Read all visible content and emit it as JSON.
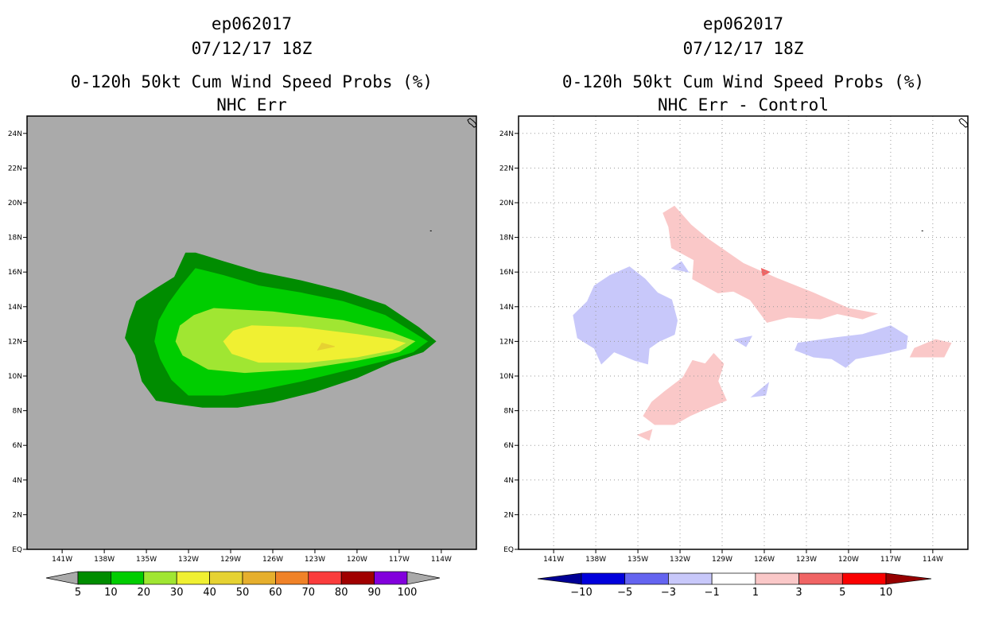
{
  "chart_data": [
    {
      "type": "heatmap",
      "storm_id": "ep062017",
      "datetime": "07/12/17 18Z",
      "title": "0-120h 50kt Cum Wind Speed Probs (%)",
      "subtitle": "NHC Err",
      "x_ticks": [
        "141W",
        "138W",
        "135W",
        "132W",
        "129W",
        "126W",
        "123W",
        "120W",
        "117W",
        "114W"
      ],
      "y_ticks": [
        "EQ",
        "2N",
        "4N",
        "6N",
        "8N",
        "10N",
        "12N",
        "14N",
        "16N",
        "18N",
        "20N",
        "22N",
        "24N"
      ],
      "xlim": [
        -143.5,
        -111.5
      ],
      "ylim": [
        0,
        25
      ],
      "background_color": "#aaaaaa",
      "colorbar": {
        "labels": [
          "5",
          "10",
          "20",
          "30",
          "40",
          "50",
          "60",
          "70",
          "80",
          "90",
          "100"
        ],
        "colors": [
          "#008c00",
          "#00cd00",
          "#a0e632",
          "#f0f032",
          "#e6d232",
          "#e6af2d",
          "#f08228",
          "#fa3c3c",
          "#a00000",
          "#8200dc"
        ],
        "end_color": "#aaaaaa"
      },
      "contours": [
        {
          "level": "5-10",
          "color": "#008c00",
          "points": [
            [
              -132.2,
              17.1
            ],
            [
              -131.5,
              17.1
            ],
            [
              -129.5,
              16.6
            ],
            [
              -127,
              16
            ],
            [
              -124,
              15.5
            ],
            [
              -121,
              14.9
            ],
            [
              -118,
              14.1
            ],
            [
              -115.6,
              12.8
            ],
            [
              -114.4,
              12
            ],
            [
              -115.3,
              11.4
            ],
            [
              -117.5,
              10.8
            ],
            [
              -120,
              9.9
            ],
            [
              -123,
              9.1
            ],
            [
              -126,
              8.5
            ],
            [
              -128.5,
              8.2
            ],
            [
              -131,
              8.2
            ],
            [
              -132.8,
              8.4
            ],
            [
              -134.3,
              8.6
            ],
            [
              -135.3,
              9.7
            ],
            [
              -135.8,
              11.2
            ],
            [
              -136.5,
              12.2
            ],
            [
              -136.2,
              13.2
            ],
            [
              -135.7,
              14.3
            ],
            [
              -134.4,
              15
            ],
            [
              -133,
              15.7
            ],
            [
              -132.2,
              17.1
            ]
          ]
        },
        {
          "level": "10-20",
          "color": "#00cd00",
          "points": [
            [
              -131.5,
              16.2
            ],
            [
              -129.5,
              15.8
            ],
            [
              -127,
              15.2
            ],
            [
              -124,
              14.8
            ],
            [
              -121,
              14.3
            ],
            [
              -118,
              13.5
            ],
            [
              -116.2,
              12.6
            ],
            [
              -115,
              12
            ],
            [
              -116,
              11.4
            ],
            [
              -118,
              10.9
            ],
            [
              -121,
              10.3
            ],
            [
              -124,
              9.7
            ],
            [
              -127,
              9.2
            ],
            [
              -129.5,
              8.9
            ],
            [
              -132,
              8.9
            ],
            [
              -133.2,
              9.8
            ],
            [
              -134,
              11
            ],
            [
              -134.4,
              12
            ],
            [
              -134.1,
              13.2
            ],
            [
              -133.4,
              14.2
            ],
            [
              -132.5,
              15.2
            ],
            [
              -131.5,
              16.2
            ]
          ]
        },
        {
          "level": "20-30",
          "color": "#a0e632",
          "points": [
            [
              -130.2,
              13.9
            ],
            [
              -126,
              13.7
            ],
            [
              -121,
              13.2
            ],
            [
              -117.5,
              12.5
            ],
            [
              -115.9,
              12
            ],
            [
              -117,
              11.4
            ],
            [
              -120,
              10.9
            ],
            [
              -124,
              10.4
            ],
            [
              -128,
              10.2
            ],
            [
              -130.6,
              10.4
            ],
            [
              -132.4,
              11.2
            ],
            [
              -132.9,
              12
            ],
            [
              -132.6,
              12.9
            ],
            [
              -131.6,
              13.5
            ],
            [
              -130.2,
              13.9
            ]
          ]
        },
        {
          "level": "30-40",
          "color": "#f0f032",
          "points": [
            [
              -127.5,
              12.9
            ],
            [
              -124,
              12.8
            ],
            [
              -120,
              12.4
            ],
            [
              -117.5,
              12.1
            ],
            [
              -116.6,
              11.9
            ],
            [
              -117.5,
              11.5
            ],
            [
              -120,
              11.1
            ],
            [
              -123.5,
              10.8
            ],
            [
              -127,
              10.8
            ],
            [
              -128.9,
              11.3
            ],
            [
              -129.5,
              12
            ],
            [
              -128.8,
              12.6
            ],
            [
              -127.5,
              12.9
            ]
          ]
        },
        {
          "level": "40-50",
          "color": "#e6d232",
          "points": [
            [
              -122.5,
              11.9
            ],
            [
              -121.6,
              11.7
            ],
            [
              -122.8,
              11.5
            ],
            [
              -122.5,
              11.9
            ]
          ]
        }
      ]
    },
    {
      "type": "heatmap",
      "storm_id": "ep062017",
      "datetime": "07/12/17 18Z",
      "title": "0-120h 50kt Cum Wind Speed Probs (%)",
      "subtitle": "NHC Err - Control",
      "x_ticks": [
        "141W",
        "138W",
        "135W",
        "132W",
        "129W",
        "126W",
        "123W",
        "120W",
        "117W",
        "114W"
      ],
      "y_ticks": [
        "EQ",
        "2N",
        "4N",
        "6N",
        "8N",
        "10N",
        "12N",
        "14N",
        "16N",
        "18N",
        "20N",
        "22N",
        "24N"
      ],
      "xlim": [
        -143.5,
        -111.5
      ],
      "ylim": [
        0,
        25
      ],
      "background_color": "#ffffff",
      "colorbar": {
        "labels": [
          "-10",
          "-5",
          "-3",
          "-1",
          "1",
          "3",
          "5",
          "10"
        ],
        "colors": [
          "#0000dc",
          "#6464f0",
          "#c8c8fa",
          "#ffffff",
          "#fac8c8",
          "#f06464",
          "#fa0000"
        ],
        "left_end_color": "#000096",
        "right_end_color": "#960000"
      },
      "contours": [
        {
          "level": "-3--1",
          "color": "#c8c8fa",
          "points": [
            [
              -137,
              15.8
            ],
            [
              -135.6,
              16.3
            ],
            [
              -134.5,
              15.6
            ],
            [
              -133.6,
              14.8
            ],
            [
              -132.6,
              14.4
            ],
            [
              -132.2,
              13.2
            ],
            [
              -132.4,
              12.4
            ],
            [
              -133.5,
              12
            ],
            [
              -134.2,
              11.6
            ],
            [
              -134.3,
              10.7
            ],
            [
              -135.2,
              10.9
            ],
            [
              -136.7,
              11.4
            ],
            [
              -137.6,
              10.7
            ],
            [
              -138.1,
              11.6
            ],
            [
              -139.3,
              12.2
            ],
            [
              -139.6,
              13.5
            ],
            [
              -138.6,
              14.3
            ],
            [
              -138.1,
              15.2
            ],
            [
              -137,
              15.8
            ]
          ]
        },
        {
          "level": "-3--1",
          "color": "#c8c8fa",
          "points": [
            [
              -123.6,
              11.9
            ],
            [
              -121,
              12.2
            ],
            [
              -119,
              12.4
            ],
            [
              -117,
              12.9
            ],
            [
              -115.8,
              12.3
            ],
            [
              -115.9,
              11.6
            ],
            [
              -117.5,
              11.3
            ],
            [
              -119.5,
              11
            ],
            [
              -120.2,
              10.5
            ],
            [
              -121.2,
              11
            ],
            [
              -122.5,
              11.1
            ],
            [
              -123.8,
              11.5
            ],
            [
              -123.6,
              11.9
            ]
          ]
        },
        {
          "level": "-3--1",
          "color": "#c8c8fa",
          "points": [
            [
              -126.9,
              8.8
            ],
            [
              -125.7,
              9.6
            ],
            [
              -125.9,
              8.9
            ],
            [
              -126.9,
              8.8
            ]
          ]
        },
        {
          "level": "-3--1",
          "color": "#c8c8fa",
          "points": [
            [
              -128.1,
              12.1
            ],
            [
              -126.9,
              12.3
            ],
            [
              -127.3,
              11.7
            ],
            [
              -128.1,
              12.1
            ]
          ]
        },
        {
          "level": "-3--1",
          "color": "#c8c8fa",
          "points": [
            [
              -132.6,
              16.2
            ],
            [
              -131.9,
              16.6
            ],
            [
              -131.4,
              16
            ],
            [
              -132.6,
              16.2
            ]
          ]
        },
        {
          "level": "1-3",
          "color": "#fac8c8",
          "points": [
            [
              -133.2,
              19.4
            ],
            [
              -132.4,
              19.8
            ],
            [
              -131.2,
              18.7
            ],
            [
              -130,
              17.9
            ],
            [
              -127.5,
              16.5
            ],
            [
              -125,
              15.6
            ],
            [
              -122.5,
              14.8
            ],
            [
              -120,
              13.9
            ],
            [
              -118,
              13.6
            ],
            [
              -119,
              13.3
            ],
            [
              -120.8,
              13.6
            ],
            [
              -122,
              13.3
            ],
            [
              -124.3,
              13.4
            ],
            [
              -125.8,
              13.1
            ],
            [
              -127,
              14.4
            ],
            [
              -128.2,
              14.9
            ],
            [
              -129.3,
              14.8
            ],
            [
              -130.2,
              15.2
            ],
            [
              -131.1,
              15.6
            ],
            [
              -131,
              16.7
            ],
            [
              -132.6,
              17.4
            ],
            [
              -132.8,
              18.6
            ],
            [
              -133.2,
              19.4
            ]
          ]
        },
        {
          "level": "1-3",
          "color": "#fac8c8",
          "points": [
            [
              -129.6,
              11.3
            ],
            [
              -128.9,
              10.7
            ],
            [
              -129.3,
              9.7
            ],
            [
              -128.7,
              8.6
            ],
            [
              -130.2,
              8.1
            ],
            [
              -131.3,
              7.7
            ],
            [
              -132.4,
              7.2
            ],
            [
              -133.8,
              7.2
            ],
            [
              -134.6,
              7.7
            ],
            [
              -134,
              8.5
            ],
            [
              -133.1,
              9.1
            ],
            [
              -131.8,
              9.9
            ],
            [
              -131.1,
              10.9
            ],
            [
              -130.2,
              10.7
            ],
            [
              -129.6,
              11.3
            ]
          ]
        },
        {
          "level": "1-3",
          "color": "#fac8c8",
          "points": [
            [
              -115.6,
              11.1
            ],
            [
              -113.2,
              11.1
            ],
            [
              -112.7,
              11.9
            ],
            [
              -113.8,
              12.1
            ],
            [
              -115.3,
              11.6
            ],
            [
              -115.6,
              11.1
            ]
          ]
        },
        {
          "level": "1-3",
          "color": "#fac8c8",
          "points": [
            [
              -135,
              6.6
            ],
            [
              -134,
              6.9
            ],
            [
              -134.2,
              6.3
            ],
            [
              -135,
              6.6
            ]
          ]
        },
        {
          "level": "3-5",
          "color": "#f06464",
          "points": [
            [
              -126.2,
              16.2
            ],
            [
              -125.6,
              16
            ],
            [
              -126.1,
              15.8
            ],
            [
              -126.2,
              16.2
            ]
          ]
        }
      ]
    }
  ]
}
